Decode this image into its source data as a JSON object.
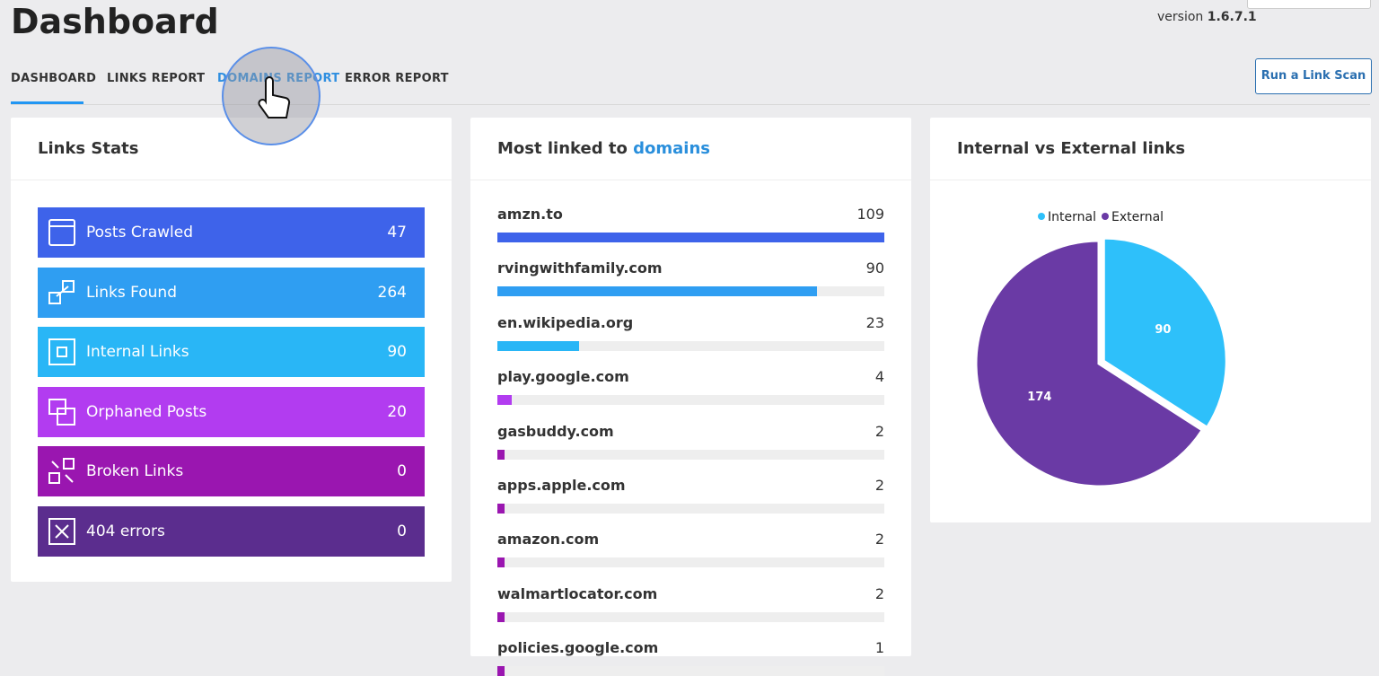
{
  "header": {
    "title": "Dashboard",
    "version_label": "version",
    "version": "1.6.7.1"
  },
  "nav": {
    "tabs": [
      "DASHBOARD",
      "LINKS REPORT",
      "DOMAINS REPORT",
      "ERROR REPORT"
    ],
    "button": "Run a Link Scan"
  },
  "links_stats": {
    "title": "Links Stats",
    "items": [
      {
        "label": "Posts Crawled",
        "value": 47,
        "color": "#3e63ea"
      },
      {
        "label": "Links Found",
        "value": 264,
        "color": "#2f9ef2"
      },
      {
        "label": "Internal Links",
        "value": 90,
        "color": "#29b6f6"
      },
      {
        "label": "Orphaned Posts",
        "value": 20,
        "color": "#b23cf0"
      },
      {
        "label": "Broken Links",
        "value": 0,
        "color": "#9a16b0"
      },
      {
        "label": "404 errors",
        "value": 0,
        "color": "#5b2d8e"
      }
    ]
  },
  "domains": {
    "title": "Most linked to",
    "title_link": "domains",
    "rows": [
      {
        "name": "amzn.to",
        "value": 109,
        "color": "#3e63ea"
      },
      {
        "name": "rvingwithfamily.com",
        "value": 90,
        "color": "#2f9ef2"
      },
      {
        "name": "en.wikipedia.org",
        "value": 23,
        "color": "#29b6f6"
      },
      {
        "name": "play.google.com",
        "value": 4,
        "color": "#b23cf0"
      },
      {
        "name": "gasbuddy.com",
        "value": 2,
        "color": "#9a16b0"
      },
      {
        "name": "apps.apple.com",
        "value": 2,
        "color": "#9a16b0"
      },
      {
        "name": "amazon.com",
        "value": 2,
        "color": "#9a16b0"
      },
      {
        "name": "walmartlocator.com",
        "value": 2,
        "color": "#9a16b0"
      },
      {
        "name": "policies.google.com",
        "value": 1,
        "color": "#9a16b0"
      }
    ]
  },
  "pie": {
    "title": "Internal vs External links",
    "slices": [
      {
        "name": "Internal",
        "value": 90,
        "color": "#2ec0fa"
      },
      {
        "name": "External",
        "value": 174,
        "color": "#6a3aa5"
      }
    ]
  }
}
